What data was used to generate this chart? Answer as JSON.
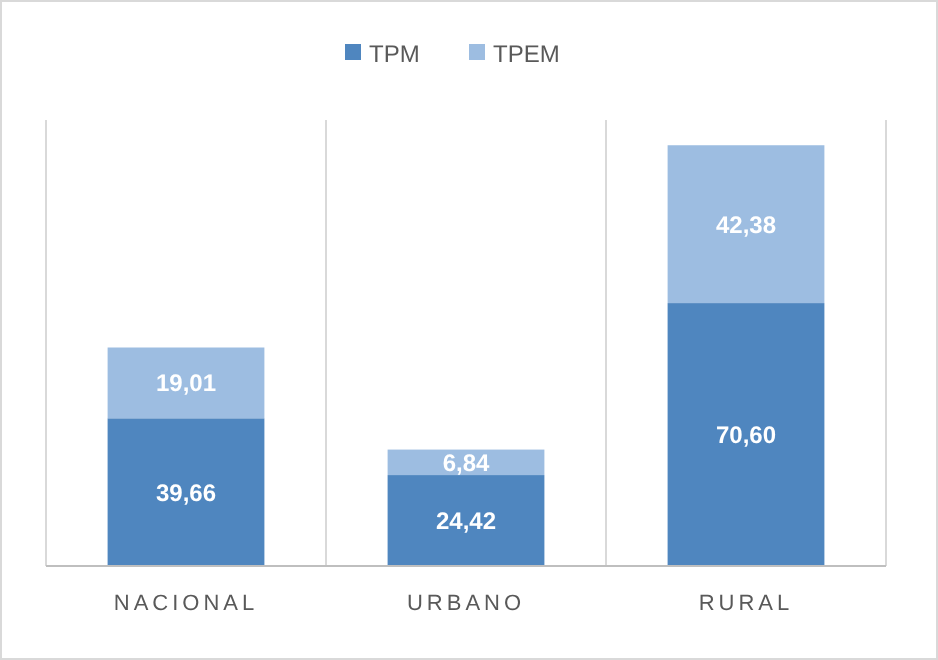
{
  "chart_data": {
    "type": "bar",
    "stacked": true,
    "grid": "x",
    "legend": "top",
    "categories": [
      "NACIONAL",
      "URBANO",
      "RURAL"
    ],
    "series": [
      {
        "name": "TPM",
        "color": "#4f86bf",
        "values": [
          39.66,
          24.42,
          70.6
        ],
        "value_labels": [
          "39,66",
          "24,42",
          "70,60"
        ]
      },
      {
        "name": "TPEM",
        "color": "#9dbde1",
        "values": [
          19.01,
          6.84,
          42.38
        ],
        "value_labels": [
          "19,01",
          "6,84",
          "42,38"
        ]
      }
    ]
  }
}
